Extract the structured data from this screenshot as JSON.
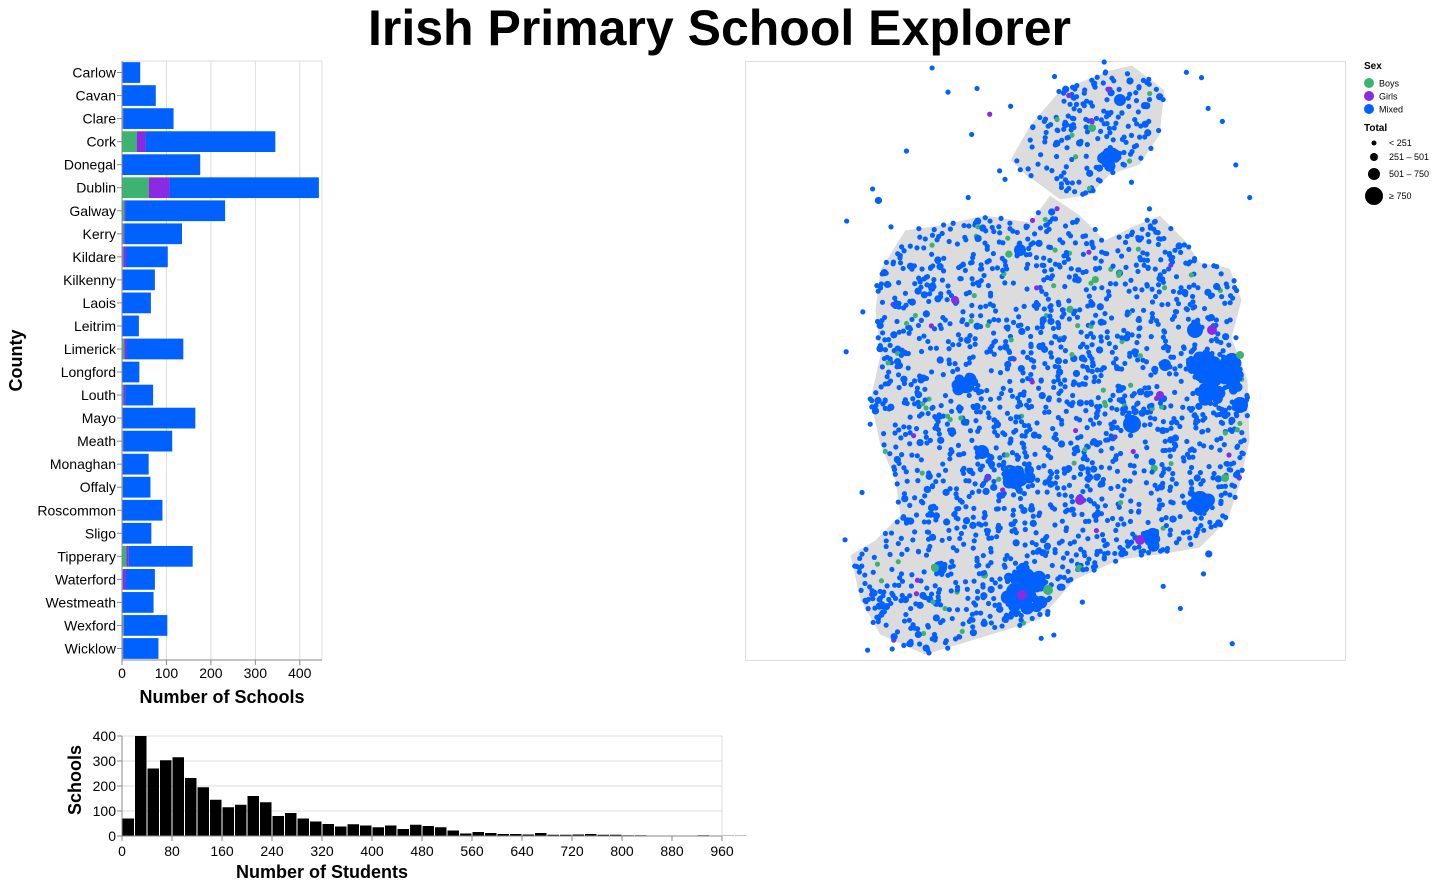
{
  "page": {
    "title": "Irish Primary School Explorer"
  },
  "colors": {
    "Boys": "#3cb371",
    "Girls": "#8a2be2",
    "Mixed": "#0061fe",
    "land": "#dcdcdc",
    "hist": "#000000",
    "grid": "#dddddd"
  },
  "chart_data": [
    {
      "type": "bar",
      "orientation": "horizontal",
      "stacked": true,
      "ylabel": "County",
      "xlabel": "Number of Schools",
      "xlim": [
        0,
        450
      ],
      "xticks": [
        "0",
        "100",
        "200",
        "300",
        "400"
      ],
      "grid": true,
      "categories": [
        "Carlow",
        "Cavan",
        "Clare",
        "Cork",
        "Donegal",
        "Dublin",
        "Galway",
        "Kerry",
        "Kildare",
        "Kilkenny",
        "Laois",
        "Leitrim",
        "Limerick",
        "Longford",
        "Louth",
        "Mayo",
        "Meath",
        "Monaghan",
        "Offaly",
        "Roscommon",
        "Sligo",
        "Tipperary",
        "Waterford",
        "Westmeath",
        "Wexford",
        "Wicklow"
      ],
      "series": [
        {
          "name": "Boys",
          "values": [
            1,
            1,
            2,
            33,
            1,
            60,
            5,
            3,
            3,
            1,
            1,
            1,
            5,
            1,
            3,
            1,
            2,
            1,
            2,
            1,
            1,
            10,
            2,
            1,
            3,
            2
          ]
        },
        {
          "name": "Girls",
          "values": [
            1,
            0,
            1,
            20,
            0,
            47,
            2,
            2,
            5,
            1,
            0,
            0,
            5,
            0,
            4,
            1,
            1,
            1,
            0,
            0,
            0,
            5,
            6,
            0,
            1,
            1
          ]
        },
        {
          "name": "Mixed",
          "values": [
            39,
            75,
            113,
            292,
            175,
            336,
            225,
            130,
            95,
            72,
            64,
            37,
            128,
            38,
            63,
            163,
            110,
            58,
            62,
            90,
            65,
            144,
            66,
            70,
            98,
            79
          ]
        }
      ]
    },
    {
      "type": "bar",
      "subtype": "histogram",
      "xlabel": "Number of Students",
      "ylabel": "Schools",
      "bin_width": 20,
      "xlim": [
        0,
        960
      ],
      "ylim": [
        0,
        400
      ],
      "xticks": [
        "0",
        "80",
        "160",
        "240",
        "320",
        "400",
        "480",
        "560",
        "640",
        "720",
        "800",
        "880",
        "960"
      ],
      "yticks": [
        "0",
        "100",
        "200",
        "300",
        "400"
      ],
      "grid": true,
      "values": [
        70,
        400,
        270,
        303,
        315,
        232,
        195,
        145,
        115,
        125,
        160,
        135,
        80,
        92,
        70,
        58,
        48,
        38,
        47,
        42,
        35,
        42,
        28,
        45,
        40,
        35,
        22,
        10,
        16,
        12,
        8,
        8,
        6,
        12,
        5,
        5,
        6,
        8,
        5,
        5,
        3,
        3,
        2,
        1,
        2,
        2,
        3,
        1,
        1,
        1
      ]
    },
    {
      "type": "scatter",
      "subtype": "map",
      "legend": {
        "color_title": "Sex",
        "color_items": [
          "Boys",
          "Girls",
          "Mixed"
        ],
        "size_title": "Total",
        "size_items": [
          "< 251",
          "251 – 501",
          "501 – 750",
          "≥ 750"
        ]
      },
      "legend_position": "top-right"
    }
  ]
}
